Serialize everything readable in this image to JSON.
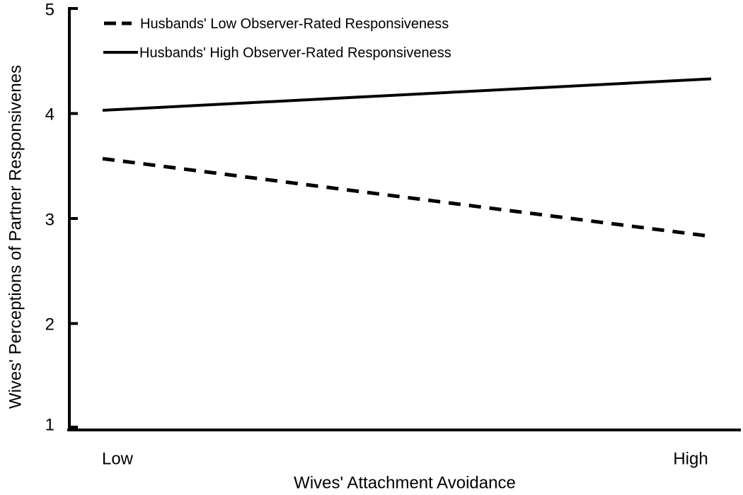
{
  "chart_data": {
    "type": "line",
    "title": "",
    "categories": [
      "Low",
      "High"
    ],
    "series": [
      {
        "name": "Husbands' Low Observer-Rated Responsiveness",
        "line_style": "dashed",
        "values": [
          3.57,
          2.83
        ]
      },
      {
        "name": "Husbands' High Observer-Rated Responsiveness",
        "line_style": "solid",
        "values": [
          4.03,
          4.33
        ]
      }
    ],
    "xlabel": "Wives' Attachment Avoidance",
    "ylabel": "Wives' Perceptions of Partner Responsivenes",
    "ylim": [
      1,
      5
    ],
    "yticks": [
      "1",
      "2",
      "3",
      "4",
      "5"
    ],
    "grid": false,
    "legend_position": "top-left-inside",
    "line_color": "#000000",
    "background_color": "#ffffff"
  }
}
